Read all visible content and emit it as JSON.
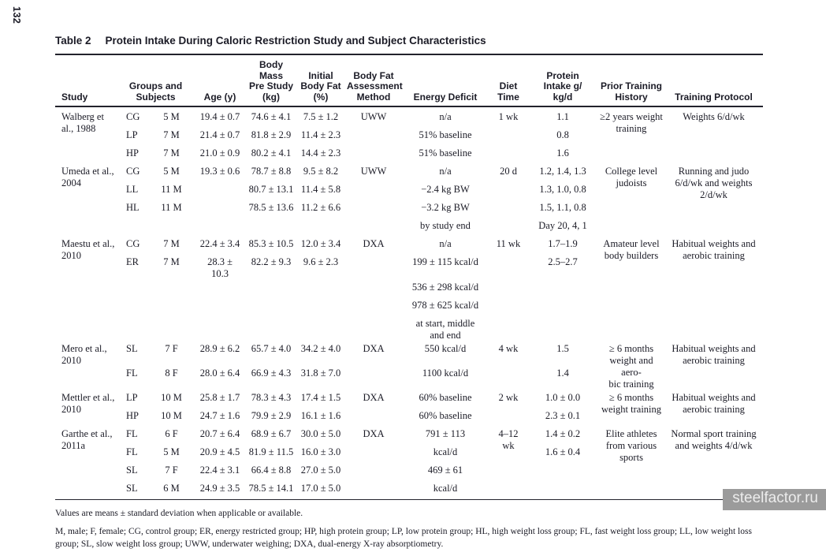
{
  "page_number": "132",
  "watermark": "steelfactor.ru",
  "table": {
    "label": "Table 2",
    "title": "Protein Intake During Caloric Restriction Study and Subject Characteristics",
    "headers": [
      {
        "t": "Study"
      },
      {
        "t": "Groups and\nSubjects",
        "cs": 2
      },
      {
        "t": "Age (y)"
      },
      {
        "t": "Body Mass\nPre Study\n(kg)"
      },
      {
        "t": "Initial\nBody Fat\n(%)"
      },
      {
        "t": "Body Fat\nAssessment\nMethod"
      },
      {
        "t": "Energy Deficit"
      },
      {
        "t": "Diet\nTime"
      },
      {
        "t": "Protein\nIntake g/\nkg/d"
      },
      {
        "t": "Prior Training\nHistory"
      },
      {
        "t": "Training Protocol"
      }
    ],
    "rows": [
      [
        {
          "t": "Walberg et al., 1988",
          "rs": 3
        },
        "CG",
        "5 M",
        "19.4 ± 0.7",
        "74.6 ± 4.1",
        "7.5 ± 1.2",
        {
          "t": "UWW",
          "rs": 3
        },
        "n/a",
        {
          "t": "1 wk",
          "rs": 3
        },
        "1.1",
        {
          "t": "≥2 years weight\ntraining",
          "rs": 3
        },
        {
          "t": "Weights 6/d/wk",
          "rs": 3
        }
      ],
      [
        "LP",
        "7 M",
        "21.4 ± 0.7",
        "81.8 ± 2.9",
        "11.4 ± 2.3",
        "51% baseline",
        "0.8"
      ],
      [
        "HP",
        "7 M",
        "21.0 ± 0.9",
        "80.2 ± 4.1",
        "14.4 ± 2.3",
        "51% baseline",
        "1.6"
      ],
      [
        {
          "t": "Umeda et al., 2004",
          "rs": 4
        },
        "CG",
        "5 M",
        "19.3 ± 0.6",
        "78.7 ± 8.8",
        "9.5 ± 8.2",
        {
          "t": "UWW",
          "rs": 4
        },
        "n/a",
        {
          "t": "20 d",
          "rs": 4
        },
        "1.2, 1.4, 1.3",
        {
          "t": "College level\njudoists",
          "rs": 4
        },
        {
          "t": "Running and judo\n6/d/wk and weights\n2/d/wk",
          "rs": 4
        }
      ],
      [
        "LL",
        "11 M",
        "",
        "80.7 ± 13.1",
        "11.4 ± 5.8",
        "−2.4 kg BW",
        "1.3, 1.0, 0.8"
      ],
      [
        "HL",
        "11 M",
        "",
        "78.5 ± 13.6",
        "11.2 ± 6.6",
        "−3.2 kg BW",
        "1.5, 1.1, 0.8"
      ],
      [
        "",
        "",
        "",
        "",
        "",
        "by study end",
        "Day 20, 4, 1"
      ],
      [
        {
          "t": "Maestu et al., 2010",
          "rs": 5
        },
        "CG",
        "7 M",
        "22.4 ± 3.4",
        "85.3 ± 10.5",
        "12.0 ± 3.4",
        {
          "t": "DXA",
          "rs": 5
        },
        "n/a",
        {
          "t": "11 wk",
          "rs": 5
        },
        "1.7–1.9",
        {
          "t": "Amateur level\nbody builders",
          "rs": 5
        },
        {
          "t": "Habitual weights and\naerobic training",
          "rs": 5
        }
      ],
      [
        "ER",
        "7 M",
        "28.3 ±\n10.3",
        "82.2 ± 9.3",
        "9.6 ± 2.3",
        "199 ± 115 kcal/d",
        "2.5–2.7"
      ],
      [
        "",
        "",
        "",
        "",
        "",
        "536 ± 298 kcal/d",
        ""
      ],
      [
        "",
        "",
        "",
        "",
        "",
        "978 ± 625 kcal/d",
        ""
      ],
      [
        "",
        "",
        "",
        "",
        "",
        "at start, middle\nand end",
        ""
      ],
      [
        {
          "t": "Mero et al., 2010",
          "rs": 2
        },
        "SL",
        "7 F",
        "28.9 ± 6.2",
        "65.7 ± 4.0",
        "34.2 ± 4.0",
        {
          "t": "DXA",
          "rs": 2
        },
        "550 kcal/d",
        {
          "t": "4 wk",
          "rs": 2
        },
        "1.5",
        {
          "t": "≥ 6 months\nweight and aero-\nbic training",
          "rs": 2
        },
        {
          "t": "Habitual weights and\naerobic training",
          "rs": 2
        }
      ],
      [
        "FL",
        "8 F",
        "28.0 ± 6.4",
        "66.9 ± 4.3",
        "31.8 ± 7.0",
        "1100 kcal/d",
        "1.4"
      ],
      [
        {
          "t": "Mettler et al., 2010",
          "rs": 2
        },
        "LP",
        "10 M",
        "25.8 ± 1.7",
        "78.3 ± 4.3",
        "17.4 ± 1.5",
        {
          "t": "DXA",
          "rs": 2
        },
        "60% baseline",
        {
          "t": "2 wk",
          "rs": 2
        },
        "1.0 ± 0.0",
        {
          "t": "≥ 6 months\nweight training",
          "rs": 2
        },
        {
          "t": "Habitual weights and\naerobic training",
          "rs": 2
        }
      ],
      [
        "HP",
        "10 M",
        "24.7 ± 1.6",
        "79.9 ± 2.9",
        "16.1 ± 1.6",
        "60% baseline",
        "2.3 ± 0.1"
      ],
      [
        {
          "t": "Garthe et al., 2011a",
          "rs": 4
        },
        "FL",
        "6 F",
        "20.7 ± 6.4",
        "68.9 ± 6.7",
        "30.0 ± 5.0",
        {
          "t": "DXA",
          "rs": 4
        },
        "791 ± 113",
        {
          "t": "4–12\nwk",
          "rs": 4
        },
        "1.4 ± 0.2",
        {
          "t": "Elite athletes\nfrom various\nsports",
          "rs": 4
        },
        {
          "t": "Normal sport training\nand weights 4/d/wk",
          "rs": 4
        }
      ],
      [
        "FL",
        "5 M",
        "20.9 ± 4.5",
        "81.9 ± 11.5",
        "16.0 ± 3.0",
        "kcal/d",
        "1.6 ± 0.4"
      ],
      [
        "SL",
        "7 F",
        "22.4 ± 3.1",
        "66.4 ± 8.8",
        "27.0 ± 5.0",
        "469 ± 61",
        ""
      ],
      [
        "SL",
        "6 M",
        "24.9 ± 3.5",
        "78.5 ± 14.1",
        "17.0 ± 5.0",
        "kcal/d",
        ""
      ]
    ],
    "footnotes": [
      "Values are means ± standard deviation when applicable or available.",
      "M, male; F, female; CG, control group; ER, energy restricted group; HP, high protein group; LP, low protein group; HL, high weight loss group; FL, fast weight loss group; LL, low weight loss group; SL, slow weight loss group; UWW, underwater weighing; DXA, dual-energy X-ray absorptiometry."
    ]
  }
}
